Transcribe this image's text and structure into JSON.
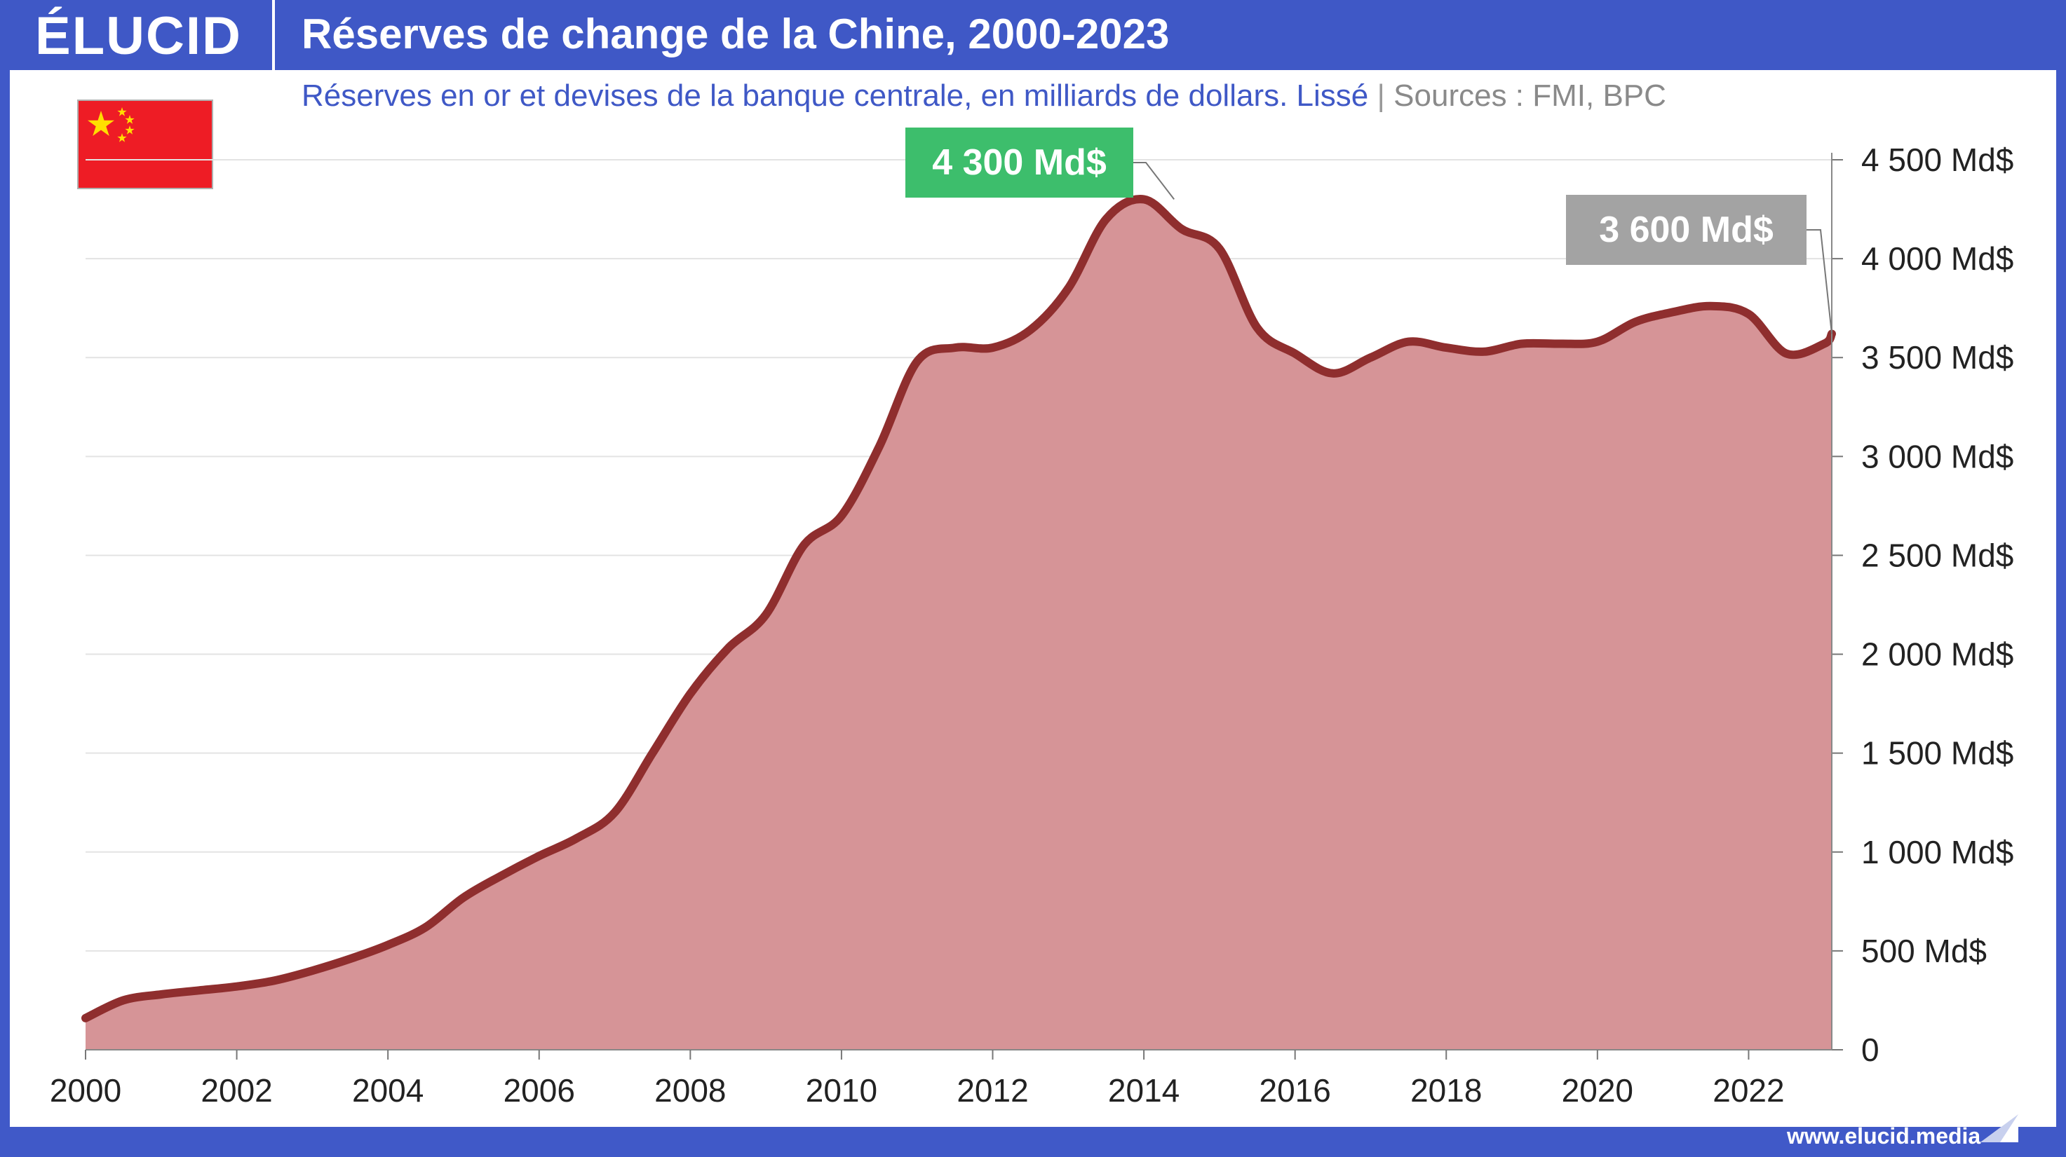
{
  "header": {
    "logo": "ÉLUCID",
    "title": "Réserves de change de la Chine, 2000-2023"
  },
  "subtitle": {
    "description": "Réserves en or et devises de la banque centrale, en milliards de dollars. Lissé",
    "separator": "|",
    "sources": "Sources : FMI, BPC"
  },
  "footer": {
    "url": "www.elucid.media"
  },
  "flag": {
    "icon": "china-flag-icon",
    "color": "#ee1c25"
  },
  "colors": {
    "header": "#3f58c6",
    "area_fill": "#d69497",
    "line": "#8f2e2e",
    "peak_callout": "#3dbe6c",
    "last_callout": "#a3a3a3"
  },
  "callouts": {
    "peak": "4 300 Md$",
    "last": "3 600 Md$"
  },
  "chart_data": {
    "type": "area",
    "title": "Réserves de change de la Chine, 2000-2023",
    "xlabel": "",
    "ylabel": "",
    "xlim": [
      2000,
      2023.1
    ],
    "ylim": [
      0,
      4500
    ],
    "grid": true,
    "x_ticks": [
      "2000",
      "2002",
      "2004",
      "2006",
      "2008",
      "2010",
      "2012",
      "2014",
      "2016",
      "2018",
      "2020",
      "2022"
    ],
    "y_ticks": [
      "0",
      "500 Md$",
      "1 000 Md$",
      "1 500 Md$",
      "2 000 Md$",
      "2 500 Md$",
      "3 000 Md$",
      "3 500 Md$",
      "4 000 Md$",
      "4 500 Md$"
    ],
    "series": [
      {
        "x": [
          2000,
          2000.5,
          2001,
          2001.5,
          2002,
          2002.5,
          2003,
          2003.5,
          2004,
          2004.5,
          2005,
          2005.5,
          2006,
          2006.5,
          2007,
          2007.5,
          2008,
          2008.5,
          2009,
          2009.5,
          2010,
          2010.5,
          2011,
          2011.5,
          2012,
          2012.5,
          2013,
          2013.5,
          2014,
          2014.5,
          2015,
          2015.5,
          2016,
          2016.5,
          2017,
          2017.5,
          2018,
          2018.5,
          2019,
          2019.5,
          2020,
          2020.5,
          2021,
          2021.5,
          2022,
          2022.5,
          2023,
          2023.1
        ],
        "values": [
          160,
          250,
          280,
          300,
          320,
          350,
          400,
          460,
          530,
          620,
          770,
          880,
          980,
          1070,
          1200,
          1500,
          1800,
          2030,
          2200,
          2550,
          2700,
          3050,
          3480,
          3550,
          3550,
          3640,
          3850,
          4200,
          4300,
          4150,
          4050,
          3650,
          3520,
          3420,
          3500,
          3580,
          3550,
          3530,
          3570,
          3570,
          3580,
          3680,
          3730,
          3760,
          3720,
          3520,
          3570,
          3620
        ]
      }
    ],
    "annotations": [
      {
        "text": "4 300 Md$",
        "x": 2014.4,
        "y": 4300
      },
      {
        "text": "3 600 Md$",
        "x": 2023.1,
        "y": 3620
      }
    ]
  }
}
